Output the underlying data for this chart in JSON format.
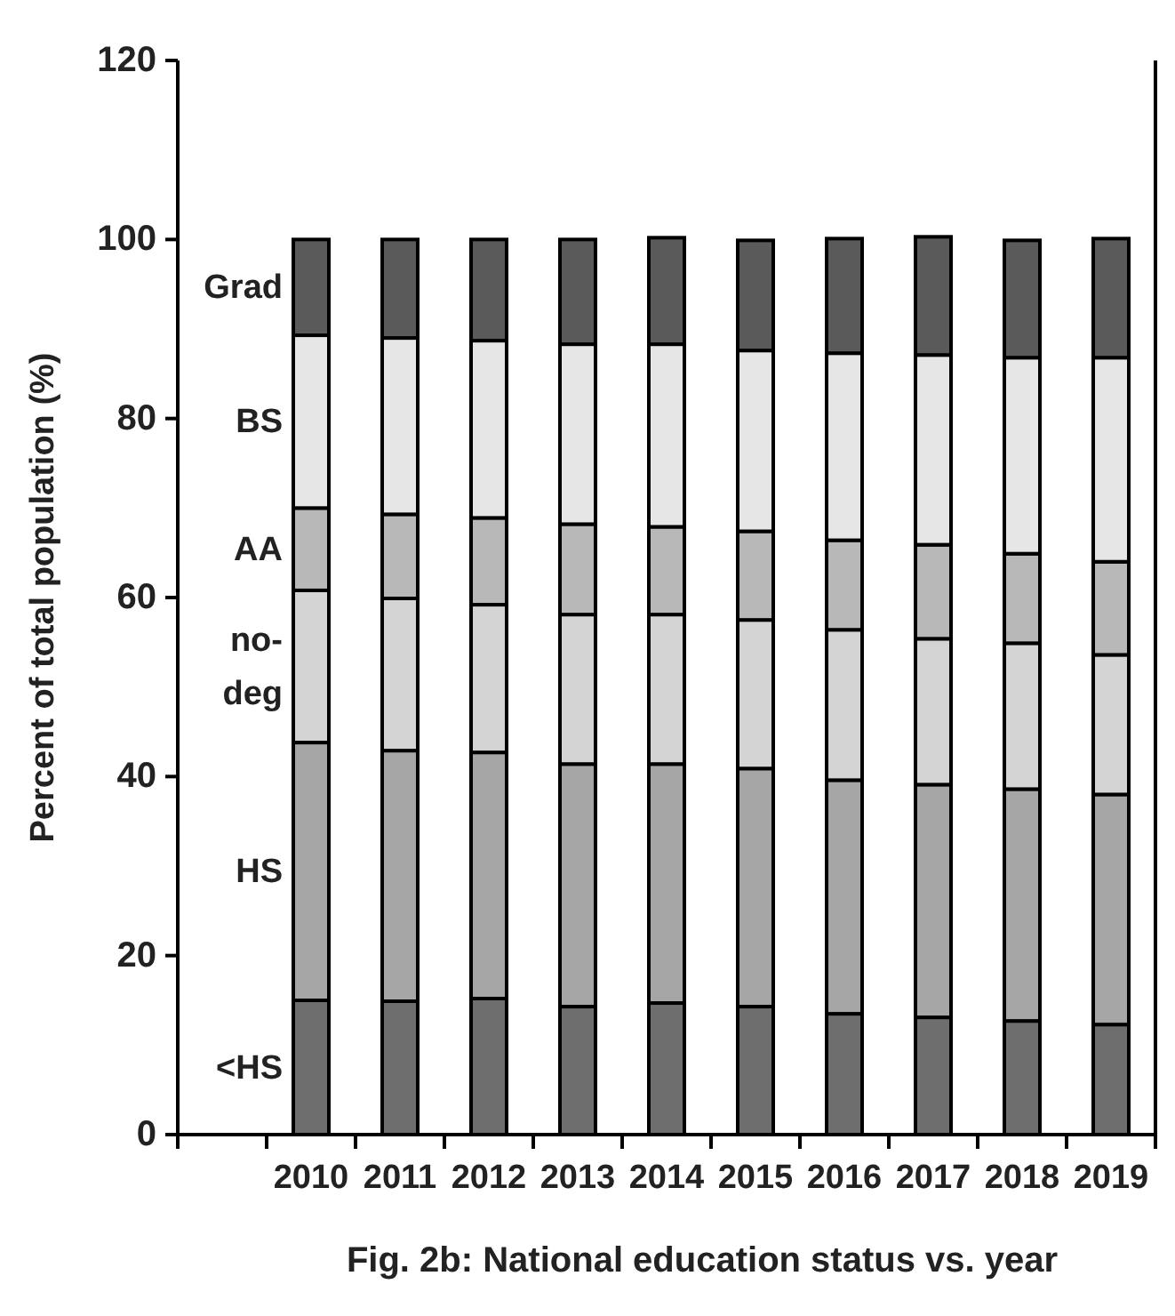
{
  "chart_data": {
    "type": "bar",
    "stacked": true,
    "title": "Fig. 2b: National education status vs. year",
    "ylabel": "Percent of total population (%)",
    "categories": [
      null,
      "2010",
      "2011",
      "2012",
      "2013",
      "2014",
      "2015",
      "2016",
      "2017",
      "2018",
      "2019"
    ],
    "ylim": [
      0,
      120
    ],
    "yticks": [
      0,
      20,
      40,
      60,
      80,
      100,
      120
    ],
    "grid": false,
    "series": [
      {
        "name": "<HS",
        "color": "#6e6e6e",
        "values": [
          null,
          15.0,
          14.9,
          15.2,
          14.3,
          14.7,
          14.3,
          13.5,
          13.1,
          12.7,
          12.3
        ]
      },
      {
        "name": "HS",
        "color": "#a6a6a6",
        "values": [
          null,
          28.8,
          28.0,
          27.5,
          27.1,
          26.7,
          26.6,
          26.1,
          26.0,
          25.9,
          25.7
        ]
      },
      {
        "name": "no-deg",
        "color": "#d4d4d4",
        "values": [
          null,
          17.0,
          17.0,
          16.5,
          16.7,
          16.7,
          16.6,
          16.8,
          16.3,
          16.3,
          15.6
        ]
      },
      {
        "name": "AA",
        "color": "#b8b8b8",
        "values": [
          null,
          9.2,
          9.4,
          9.7,
          10.1,
          9.8,
          9.9,
          10.0,
          10.5,
          10.0,
          10.4
        ]
      },
      {
        "name": "BS",
        "color": "#e6e6e6",
        "values": [
          null,
          19.3,
          19.7,
          19.8,
          20.1,
          20.4,
          20.2,
          20.9,
          21.2,
          21.9,
          22.8
        ]
      },
      {
        "name": "Grad",
        "color": "#5a5a5a",
        "values": [
          null,
          10.7,
          11.0,
          11.3,
          11.7,
          11.9,
          12.3,
          12.8,
          13.2,
          13.1,
          13.3
        ]
      }
    ]
  }
}
